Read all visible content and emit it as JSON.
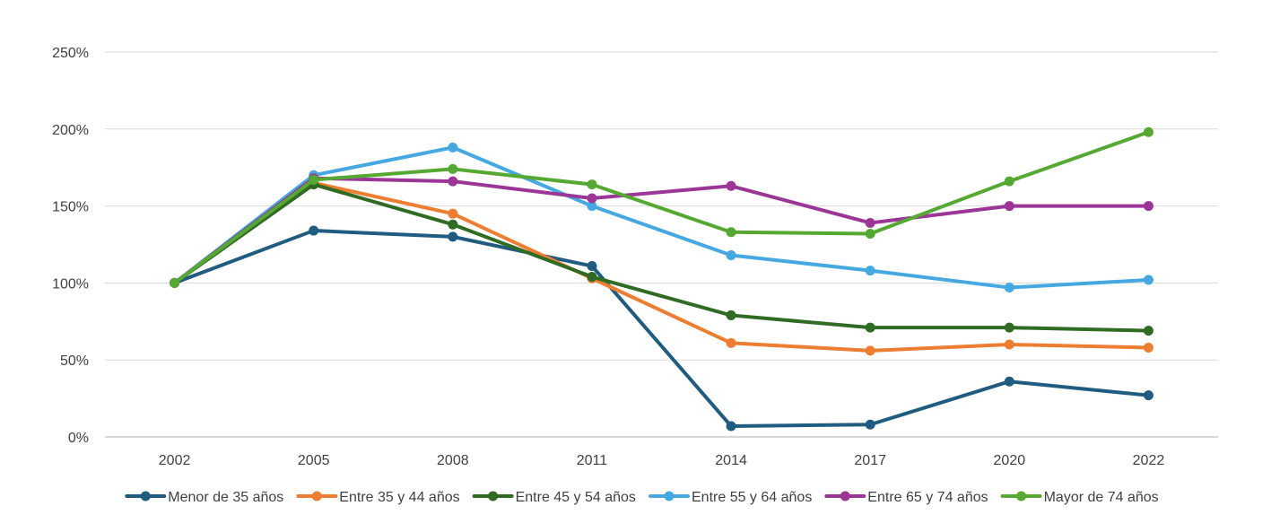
{
  "chart_data": {
    "type": "line",
    "title": "",
    "xlabel": "",
    "ylabel": "",
    "categories": [
      "2002",
      "2005",
      "2008",
      "2011",
      "2014",
      "2017",
      "2020",
      "2022"
    ],
    "y_ticks": [
      "0%",
      "50%",
      "100%",
      "150%",
      "200%",
      "250%"
    ],
    "ylim": [
      0,
      250
    ],
    "y_unit": "%",
    "grid": "horizontal",
    "legend_position": "bottom",
    "series": [
      {
        "name": "Menor de 35 años",
        "color": "#1f5c80",
        "values": [
          100,
          134,
          130,
          111,
          7,
          8,
          36,
          27
        ]
      },
      {
        "name": "Entre 35 y 44 años",
        "color": "#ed7d31",
        "values": [
          100,
          165,
          145,
          103,
          61,
          56,
          60,
          58
        ]
      },
      {
        "name": "Entre 45 y 54 años",
        "color": "#2f6b22",
        "values": [
          100,
          164,
          138,
          104,
          79,
          71,
          71,
          69
        ]
      },
      {
        "name": "Entre 55 y 64 años",
        "color": "#45a8e0",
        "values": [
          100,
          170,
          188,
          150,
          118,
          108,
          97,
          102
        ]
      },
      {
        "name": "Entre 65 y 74 años",
        "color": "#9b3596",
        "values": [
          100,
          168,
          166,
          155,
          163,
          139,
          150,
          150
        ]
      },
      {
        "name": "Mayor de 74 años",
        "color": "#55a933",
        "values": [
          100,
          167,
          174,
          164,
          133,
          132,
          166,
          198
        ]
      }
    ]
  }
}
